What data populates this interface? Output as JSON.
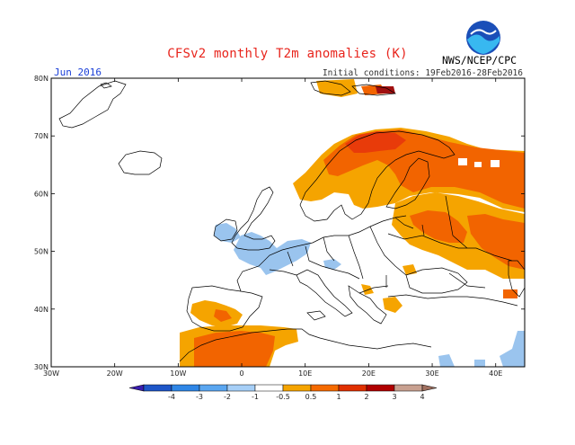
{
  "title": "CFSv2 monthly T2m anomalies (K)",
  "organization": "NWS/NCEP/CPC",
  "logo_text": "NOAA",
  "period": "Jun 2016",
  "initial_conditions": "Initial conditions: 19Feb2016-28Feb2016",
  "lon_ticks": [
    "30W",
    "20W",
    "10W",
    "0",
    "10E",
    "20E",
    "30E",
    "40E"
  ],
  "lat_ticks": [
    "30N",
    "40N",
    "50N",
    "60N",
    "70N",
    "80N"
  ],
  "colorbar": {
    "labels": [
      "-4",
      "-3",
      "-2",
      "-1",
      "-0.5",
      "0.5",
      "1",
      "2",
      "3",
      "4"
    ],
    "colors": [
      "#3a1eb0",
      "#1e56c8",
      "#2f86e6",
      "#5aa6f0",
      "#a6cff7",
      "#ffffff",
      "#f5a400",
      "#f56a00",
      "#e03000",
      "#b00000",
      "#c8a090",
      "#a07060"
    ]
  },
  "anomaly_palette": {
    "light_blue": "#9ac4ee",
    "orange": "#f5a400",
    "dark_orange": "#f26400",
    "red_orange": "#e83b0a",
    "dark_red": "#a01010"
  }
}
